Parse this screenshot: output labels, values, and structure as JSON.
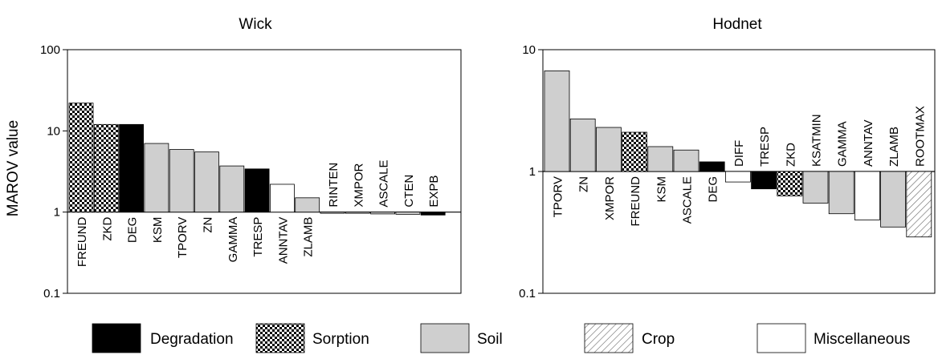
{
  "shared_ylabel": "MAROV value",
  "colors": {
    "degradation": "#000000",
    "soil": "#cfcfcf",
    "miscellaneous": "#ffffff",
    "outline": "#000000"
  },
  "chart_data": [
    {
      "type": "bar",
      "title": "Wick",
      "ylabel": "MAROV value",
      "yscale": "log",
      "ylim": [
        0.1,
        100
      ],
      "yticks": [
        "0.1",
        "1",
        "10",
        "100"
      ],
      "baseline": 1,
      "categories": [
        "FREUND",
        "ZKD",
        "DEG",
        "KSM",
        "TPORV",
        "ZN",
        "GAMMA",
        "TRESP",
        "ANNTAV",
        "ZLAMB",
        "RINTEN",
        "XMPOR",
        "ASCALE",
        "CTEN",
        "EXPB"
      ],
      "values": [
        22,
        12,
        12,
        7.0,
        5.9,
        5.5,
        3.7,
        3.4,
        2.2,
        1.5,
        0.98,
        0.97,
        0.95,
        0.94,
        0.92
      ],
      "groups": [
        "Sorption",
        "Sorption",
        "Degradation",
        "Soil",
        "Soil",
        "Soil",
        "Soil",
        "Degradation",
        "Miscellaneous",
        "Soil",
        "Soil",
        "Soil",
        "Soil",
        "Soil",
        "Degradation"
      ]
    },
    {
      "type": "bar",
      "title": "Hodnet",
      "ylabel": "",
      "yscale": "log",
      "ylim": [
        0.1,
        10
      ],
      "yticks": [
        "0.1",
        "1",
        "10"
      ],
      "baseline": 1,
      "categories": [
        "TPORV",
        "ZN",
        "XMPOR",
        "FREUND",
        "KSM",
        "ASCALE",
        "DEG",
        "DIFF",
        "TRESP",
        "ZKD",
        "KSATMIN",
        "GAMMA",
        "ANNTAV",
        "ZLAMB",
        "ROOTMAX"
      ],
      "values": [
        6.7,
        2.7,
        2.3,
        2.1,
        1.6,
        1.5,
        1.2,
        0.82,
        0.72,
        0.63,
        0.55,
        0.45,
        0.4,
        0.35,
        0.29
      ],
      "groups": [
        "Soil",
        "Soil",
        "Soil",
        "Sorption",
        "Soil",
        "Soil",
        "Degradation",
        "Miscellaneous",
        "Degradation",
        "Sorption",
        "Soil",
        "Soil",
        "Miscellaneous",
        "Soil",
        "Crop"
      ]
    }
  ],
  "legend": [
    {
      "label": "Degradation",
      "group": "Degradation"
    },
    {
      "label": "Sorption",
      "group": "Sorption"
    },
    {
      "label": "Soil",
      "group": "Soil"
    },
    {
      "label": "Crop",
      "group": "Crop"
    },
    {
      "label": "Miscellaneous",
      "group": "Miscellaneous"
    }
  ]
}
